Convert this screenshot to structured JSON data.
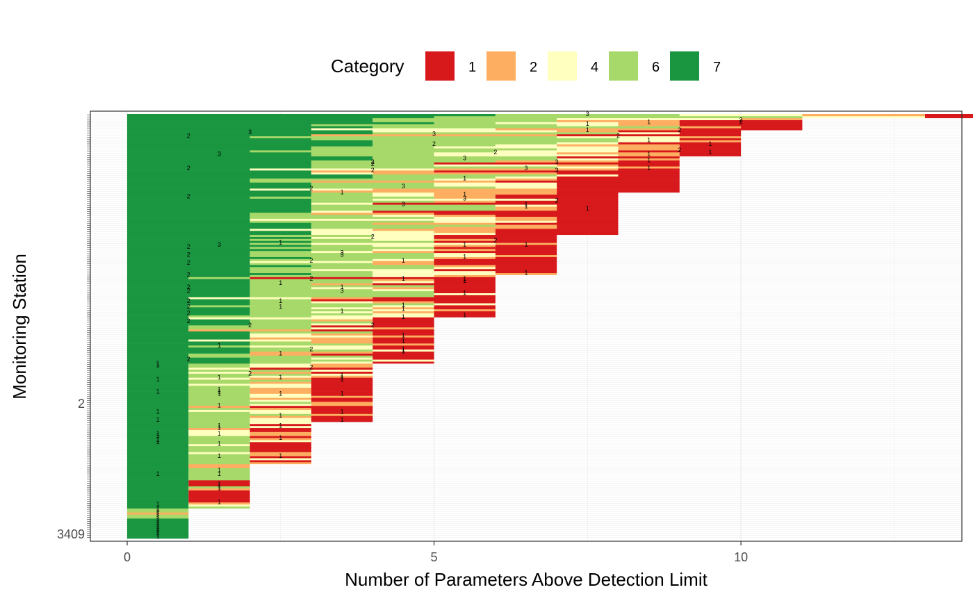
{
  "chart_data": {
    "type": "bar",
    "orientation": "horizontal",
    "stacked": true,
    "xlabel": "Number of Parameters Above Detection Limit",
    "ylabel": "Monitoring Station",
    "xlim": [
      -0.6,
      13.6
    ],
    "x_ticks": [
      0,
      5,
      10
    ],
    "grid": true,
    "legend": {
      "title": "Category",
      "position": "top",
      "entries": [
        {
          "label": "1",
          "color": "#d7191c"
        },
        {
          "label": "2",
          "color": "#fdae61"
        },
        {
          "label": "4",
          "color": "#ffffbf"
        },
        {
          "label": "6",
          "color": "#a6d96a"
        },
        {
          "label": "7",
          "color": "#1a9641"
        }
      ]
    },
    "station_label_note": "y-axis station labels overlap and are illegible",
    "visible_station_labels": [
      {
        "label": "3409",
        "position": "bottom"
      },
      {
        "label": "2",
        "position": "middle"
      }
    ],
    "groups": [
      {
        "name": "Category 1",
        "color": "#d7191c",
        "rows": [
          0,
          0,
          0,
          0,
          0,
          0,
          0,
          0,
          0,
          0,
          0,
          0,
          0,
          0,
          0,
          1,
          1,
          1,
          1,
          1,
          1,
          1,
          1,
          1,
          1,
          1,
          1,
          1,
          1,
          1,
          1,
          1,
          1,
          1,
          1,
          1,
          1,
          2,
          2,
          2,
          2,
          2,
          2,
          2,
          2,
          2,
          2,
          2,
          2,
          2,
          2,
          2,
          2,
          2,
          2,
          2,
          2,
          2,
          3,
          3,
          3,
          3,
          3,
          3,
          3,
          3,
          3,
          3,
          3,
          3,
          3,
          3,
          3,
          3,
          3,
          3,
          3,
          3,
          3,
          3,
          3,
          3,
          3,
          3,
          3,
          3,
          3,
          4,
          4,
          4,
          4,
          4,
          4,
          4,
          4,
          4,
          4,
          4,
          4,
          4,
          4,
          4,
          4,
          4,
          4,
          4,
          4,
          4,
          4,
          4,
          5,
          5,
          5,
          5,
          5,
          5,
          5,
          5,
          5,
          5,
          5,
          5,
          5,
          5,
          5,
          5,
          5,
          5,
          5,
          5,
          5,
          6,
          6,
          6,
          6,
          6,
          6,
          6,
          6,
          6,
          6,
          6,
          6,
          6,
          6,
          6,
          6,
          6,
          6,
          6,
          6,
          7,
          7,
          7,
          7,
          7,
          7,
          7,
          7,
          7,
          7,
          7,
          7,
          7,
          7,
          7,
          7,
          7,
          7,
          7,
          7,
          7,
          8,
          8,
          8,
          8,
          8,
          8,
          8,
          8,
          8,
          8,
          8,
          8,
          8,
          8,
          8,
          8,
          8,
          8,
          9,
          9,
          9,
          9,
          9,
          9,
          9,
          9,
          9,
          9,
          9,
          9,
          9,
          10,
          10,
          10,
          10,
          10,
          10,
          13,
          13
        ]
      }
    ],
    "note": "Each row is one station; segment colours follow per-parameter category, bars sorted by total count"
  }
}
